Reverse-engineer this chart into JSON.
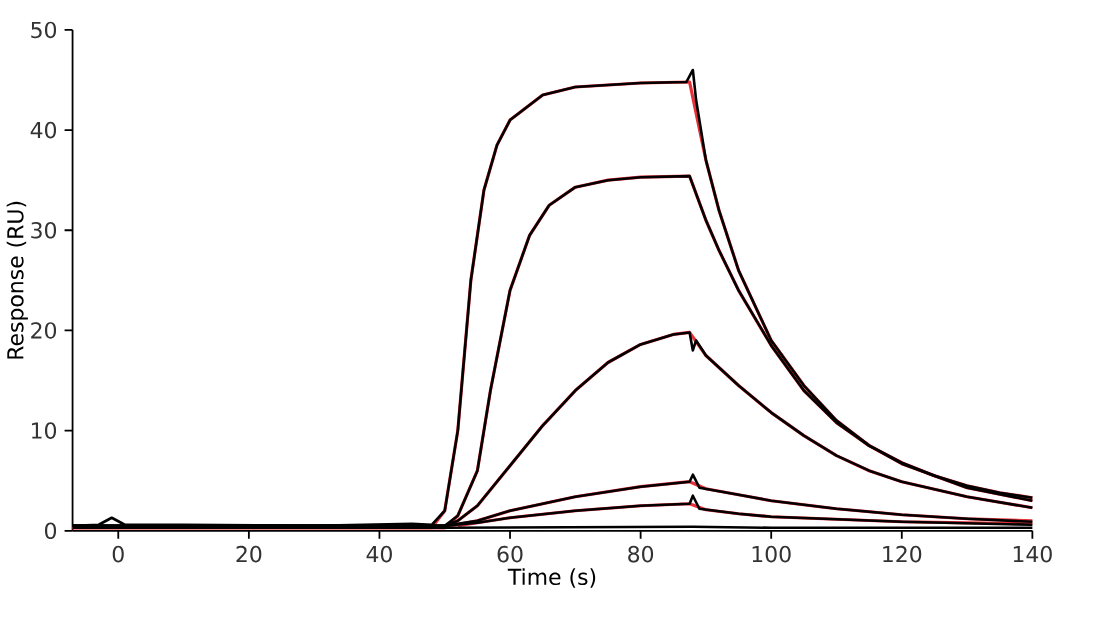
{
  "chart_data": {
    "type": "line",
    "xlabel": "Time (s)",
    "ylabel": "Response (RU)",
    "xlim": [
      -7,
      140
    ],
    "ylim": [
      0,
      50
    ],
    "xticks": [
      0,
      20,
      40,
      60,
      80,
      100,
      120,
      140
    ],
    "yticks": [
      0,
      10,
      20,
      30,
      40,
      50
    ],
    "grid": false,
    "marker": "none",
    "line_style": "solid",
    "series": [
      {
        "color": "#e8303a",
        "x": [
          -7,
          48,
          50,
          52,
          54,
          56,
          58,
          60,
          65,
          70,
          80,
          87.5,
          90,
          92,
          95,
          100,
          105,
          110,
          115,
          120,
          125,
          130,
          135,
          140
        ],
        "values": [
          0.3,
          0.3,
          2,
          10,
          25,
          34,
          38.5,
          41,
          43.5,
          44.3,
          44.7,
          44.8,
          37,
          32,
          26,
          19,
          14.5,
          11,
          8.5,
          6.8,
          5.5,
          4.5,
          3.8,
          3.3
        ]
      },
      {
        "color": "#e8303a",
        "x": [
          -7,
          50,
          52,
          55,
          57,
          60,
          63,
          66,
          70,
          75,
          80,
          87.5,
          90,
          92,
          95,
          100,
          105,
          110,
          115,
          120,
          130,
          140
        ],
        "values": [
          0.3,
          0.3,
          1.5,
          6,
          14,
          24,
          29.5,
          32.5,
          34.3,
          35,
          35.3,
          35.4,
          31,
          28,
          24,
          18.5,
          14,
          10.8,
          8.5,
          6.7,
          4.3,
          3.0
        ]
      },
      {
        "color": "#e8303a",
        "x": [
          -7,
          50,
          52,
          55,
          60,
          65,
          70,
          75,
          80,
          85,
          87.5,
          90,
          95,
          100,
          105,
          110,
          115,
          120,
          130,
          140
        ],
        "values": [
          0.3,
          0.3,
          1,
          2.5,
          6.5,
          10.5,
          14,
          16.8,
          18.6,
          19.6,
          19.8,
          17.5,
          14.5,
          11.8,
          9.5,
          7.5,
          6.0,
          4.9,
          3.4,
          2.3
        ]
      },
      {
        "color": "#e8303a",
        "x": [
          50,
          55,
          60,
          70,
          80,
          87.5,
          90,
          95,
          100,
          110,
          120,
          130,
          140
        ],
        "values": [
          0.4,
          1,
          2,
          3.4,
          4.4,
          4.9,
          4.2,
          3.6,
          3.0,
          2.2,
          1.6,
          1.2,
          1.0
        ]
      },
      {
        "color": "#e8303a",
        "x": [
          52,
          55,
          60,
          70,
          80,
          87.5,
          90,
          95,
          100,
          120,
          140
        ],
        "values": [
          0.5,
          0.8,
          1.3,
          2.0,
          2.5,
          2.7,
          2.1,
          1.7,
          1.4,
          0.9,
          0.7
        ]
      },
      {
        "color": "#000000",
        "x": [
          -7,
          -3,
          -1,
          1,
          10,
          30,
          45,
          48,
          50,
          52,
          54,
          56,
          58,
          60,
          65,
          70,
          80,
          87,
          88,
          88.5,
          90,
          92,
          95,
          100,
          105,
          110,
          115,
          120,
          125,
          130,
          135,
          140
        ],
        "values": [
          0.5,
          0.6,
          1.3,
          0.6,
          0.6,
          0.5,
          0.7,
          0.6,
          2,
          10,
          25,
          34,
          38.5,
          41,
          43.5,
          44.3,
          44.7,
          44.8,
          46,
          43,
          37,
          32,
          26,
          19,
          14.5,
          11,
          8.5,
          6.8,
          5.5,
          4.5,
          3.8,
          3.3
        ]
      },
      {
        "color": "#000000",
        "x": [
          -7,
          50,
          52,
          55,
          57,
          60,
          63,
          66,
          70,
          75,
          80,
          87.5,
          90,
          92,
          95,
          100,
          105,
          110,
          115,
          120,
          130,
          140
        ],
        "values": [
          0.5,
          0.5,
          1.5,
          6,
          14,
          24,
          29.5,
          32.5,
          34.3,
          35,
          35.3,
          35.4,
          31,
          28,
          24,
          18.5,
          14,
          10.8,
          8.5,
          6.7,
          4.3,
          3.0
        ]
      },
      {
        "color": "#000000",
        "x": [
          -7,
          50,
          52,
          55,
          60,
          65,
          70,
          75,
          80,
          85,
          87.5,
          88,
          88.5,
          90,
          95,
          100,
          105,
          110,
          115,
          120,
          130,
          140
        ],
        "values": [
          0.5,
          0.5,
          1,
          2.5,
          6.5,
          10.5,
          14,
          16.8,
          18.6,
          19.6,
          19.8,
          18,
          19,
          17.5,
          14.5,
          11.8,
          9.5,
          7.5,
          6.0,
          4.9,
          3.4,
          2.3
        ]
      },
      {
        "color": "#000000",
        "x": [
          -7,
          50,
          55,
          60,
          70,
          80,
          87.5,
          88,
          89,
          95,
          100,
          110,
          120,
          130,
          140
        ],
        "values": [
          0.5,
          0.5,
          1,
          2,
          3.4,
          4.4,
          4.9,
          5.6,
          4.3,
          3.6,
          3.0,
          2.2,
          1.6,
          1.2,
          0.9
        ]
      },
      {
        "color": "#000000",
        "x": [
          -7,
          50,
          55,
          60,
          70,
          80,
          87.5,
          88,
          89,
          95,
          100,
          120,
          140
        ],
        "values": [
          0.5,
          0.5,
          0.8,
          1.3,
          2.0,
          2.5,
          2.7,
          3.5,
          2.2,
          1.7,
          1.4,
          0.9,
          0.6
        ]
      },
      {
        "color": "#000000",
        "x": [
          -7,
          20,
          50,
          88,
          100,
          140
        ],
        "values": [
          0.3,
          0.3,
          0.3,
          0.4,
          0.3,
          0.3
        ]
      }
    ]
  }
}
